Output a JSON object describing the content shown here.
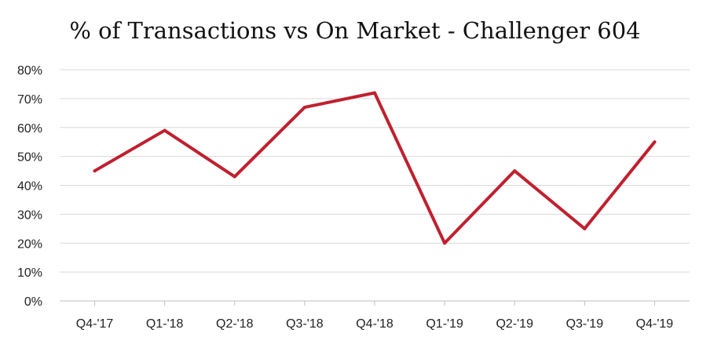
{
  "chart_data": {
    "type": "line",
    "title": "% of Transactions vs On Market - Challenger 604",
    "xlabel": "",
    "ylabel": "",
    "categories": [
      "Q4-'17",
      "Q1-'18",
      "Q2-'18",
      "Q3-'18",
      "Q4-'18",
      "Q1-'19",
      "Q2-'19",
      "Q3-'19",
      "Q4-'19"
    ],
    "series": [
      {
        "values": [
          45,
          59,
          43,
          67,
          72,
          20,
          45,
          25,
          55
        ],
        "color": "#c0202f"
      }
    ],
    "ylim": [
      0,
      80
    ],
    "yticks": [
      "0%",
      "10%",
      "20%",
      "30%",
      "40%",
      "50%",
      "60%",
      "70%",
      "80%"
    ],
    "grid": true,
    "legend": "none"
  }
}
